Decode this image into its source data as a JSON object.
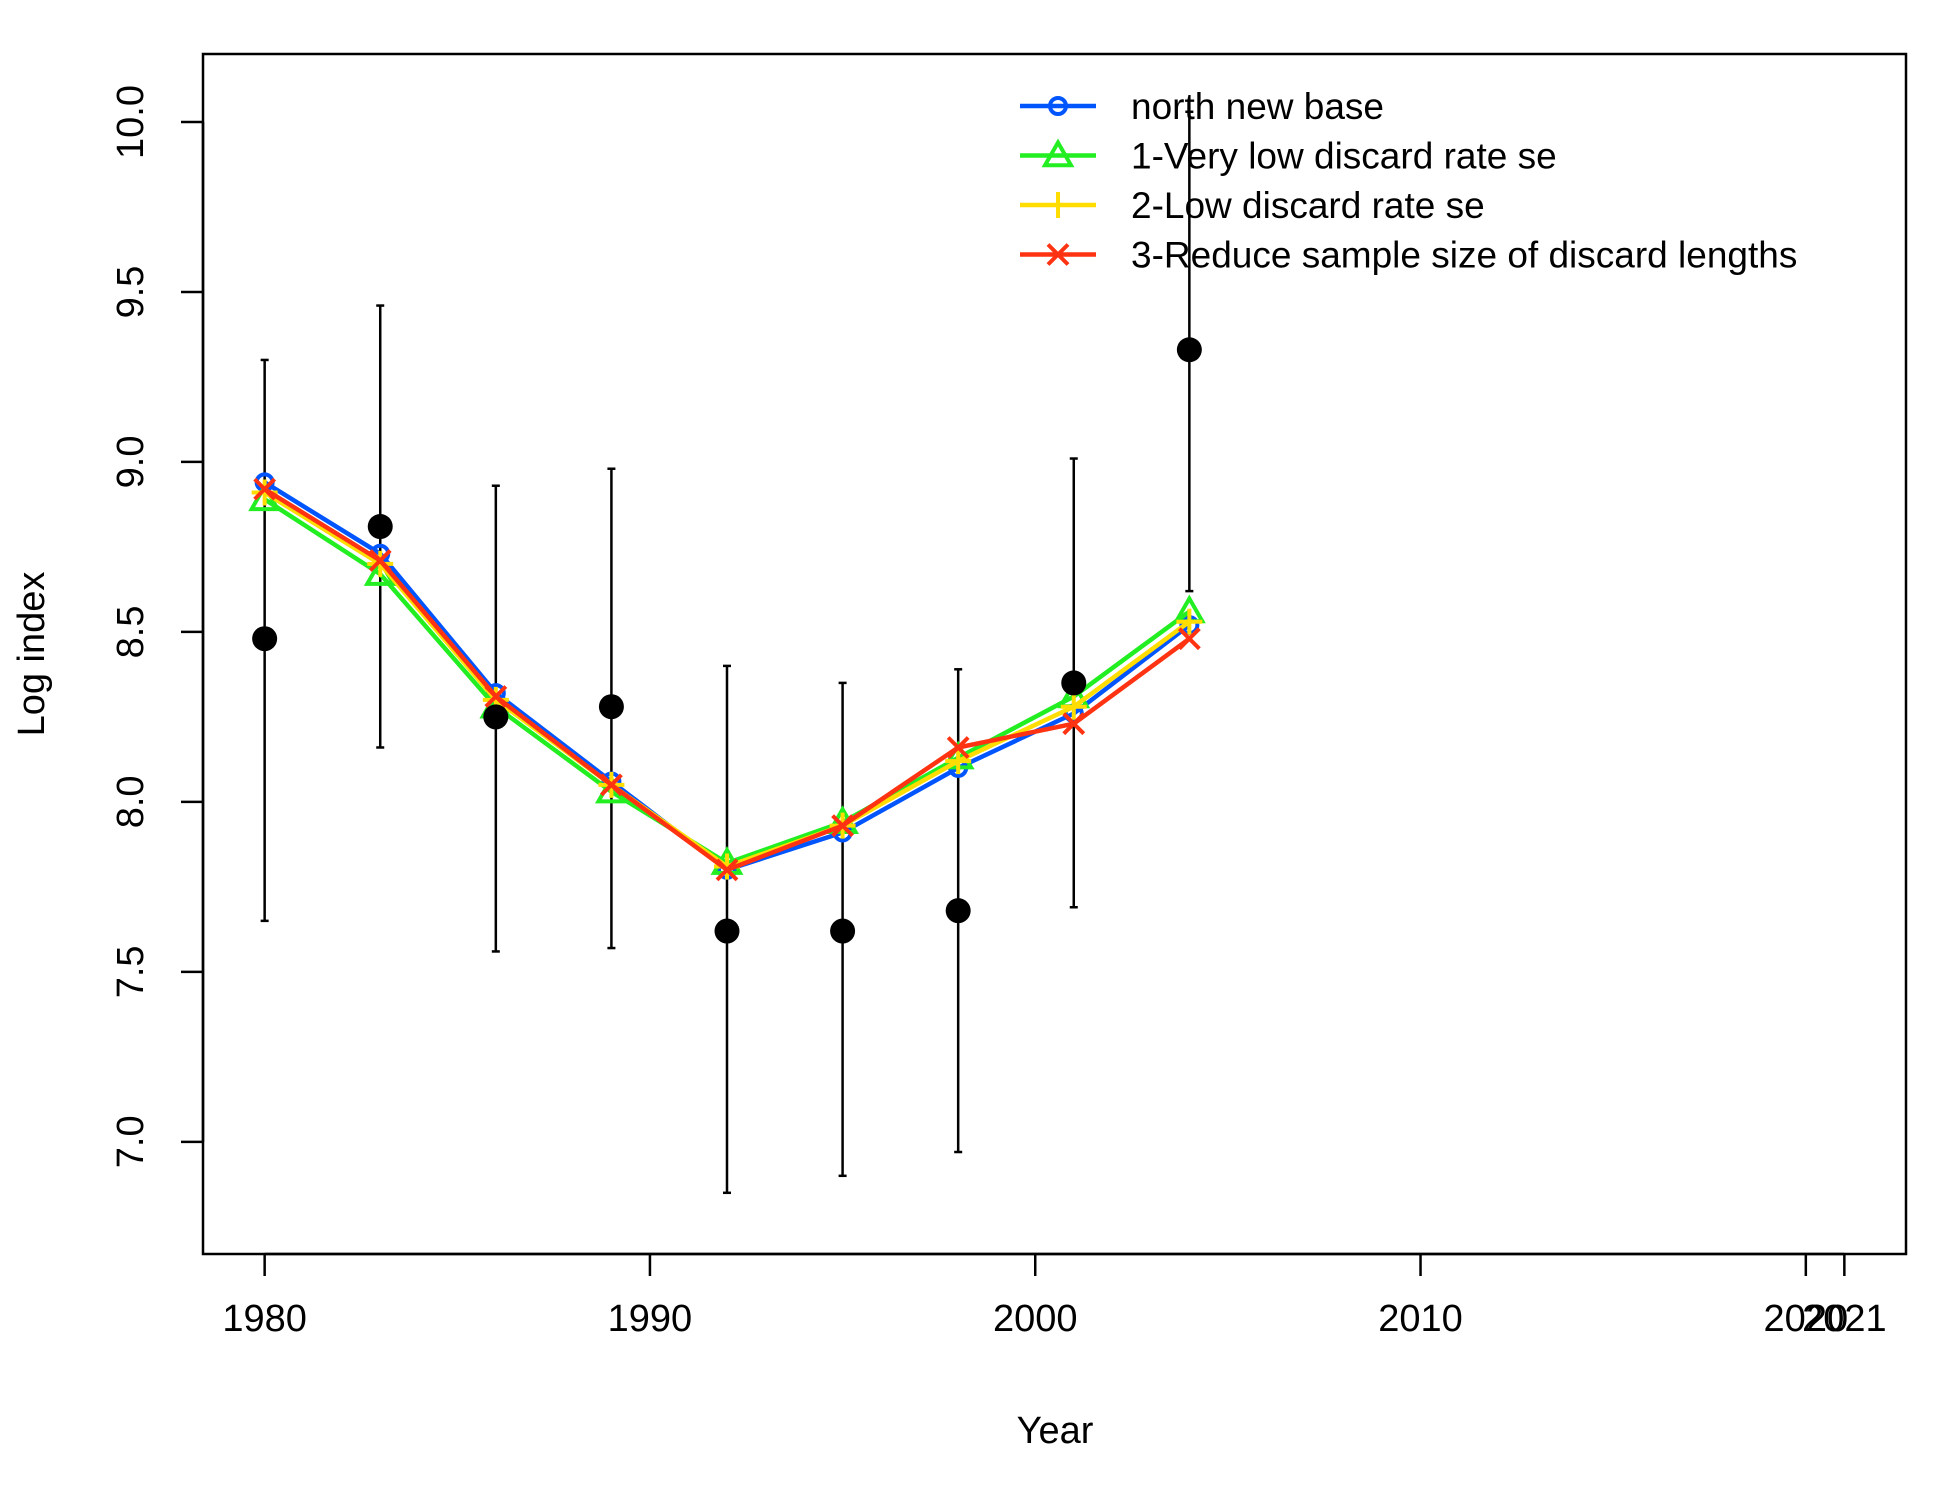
{
  "chart_data": {
    "type": "line",
    "title": "",
    "xlabel": "Year",
    "ylabel": "Log index",
    "xlim": [
      1978.4,
      2022.6
    ],
    "ylim": [
      6.67,
      10.2
    ],
    "x_ticks": [
      1980,
      1990,
      2000,
      2010,
      2020,
      2021
    ],
    "y_ticks": [
      7.0,
      7.5,
      8.0,
      8.5,
      9.0,
      9.5,
      10.0
    ],
    "grid": false,
    "legend_position": "top-right",
    "observations": {
      "points": [
        {
          "x": 1980,
          "y": 8.48,
          "lo": 7.65,
          "hi": 9.3
        },
        {
          "x": 1983,
          "y": 8.81,
          "lo": 8.16,
          "hi": 9.46
        },
        {
          "x": 1986,
          "y": 8.25,
          "lo": 7.56,
          "hi": 8.93
        },
        {
          "x": 1989,
          "y": 8.28,
          "lo": 7.57,
          "hi": 8.98
        },
        {
          "x": 1992,
          "y": 7.62,
          "lo": 6.85,
          "hi": 8.4
        },
        {
          "x": 1995,
          "y": 7.62,
          "lo": 6.9,
          "hi": 8.35
        },
        {
          "x": 1998,
          "y": 7.68,
          "lo": 6.97,
          "hi": 8.39
        },
        {
          "x": 2001,
          "y": 8.35,
          "lo": 7.69,
          "hi": 9.01
        },
        {
          "x": 2004,
          "y": 9.33,
          "lo": 8.62,
          "hi": 10.03
        }
      ]
    },
    "series": [
      {
        "name": "north new base",
        "color": "#0055ff",
        "marker": "circle",
        "x": [
          1980,
          1983,
          1986,
          1989,
          1992,
          1995,
          1998,
          2001,
          2004
        ],
        "values": [
          8.94,
          8.73,
          8.32,
          8.06,
          7.8,
          7.91,
          8.1,
          8.26,
          8.52
        ]
      },
      {
        "name": "1-Very low discard rate se",
        "color": "#22ee22",
        "marker": "triangle",
        "x": [
          1980,
          1983,
          1986,
          1989,
          1992,
          1995,
          1998,
          2001,
          2004
        ],
        "values": [
          8.89,
          8.67,
          8.28,
          8.03,
          7.82,
          7.94,
          8.13,
          8.31,
          8.56
        ]
      },
      {
        "name": "2-Low discard rate se",
        "color": "#ffdd00",
        "marker": "plus",
        "x": [
          1980,
          1983,
          1986,
          1989,
          1992,
          1995,
          1998,
          2001,
          2004
        ],
        "values": [
          8.91,
          8.7,
          8.3,
          8.05,
          7.81,
          7.93,
          8.12,
          8.28,
          8.53
        ]
      },
      {
        "name": "3-Reduce sample size of discard lengths",
        "color": "#ff3311",
        "marker": "x",
        "x": [
          1980,
          1983,
          1986,
          1989,
          1992,
          1995,
          1998,
          2001,
          2004
        ],
        "values": [
          8.92,
          8.71,
          8.31,
          8.05,
          7.8,
          7.93,
          8.16,
          8.23,
          8.48
        ]
      }
    ]
  }
}
